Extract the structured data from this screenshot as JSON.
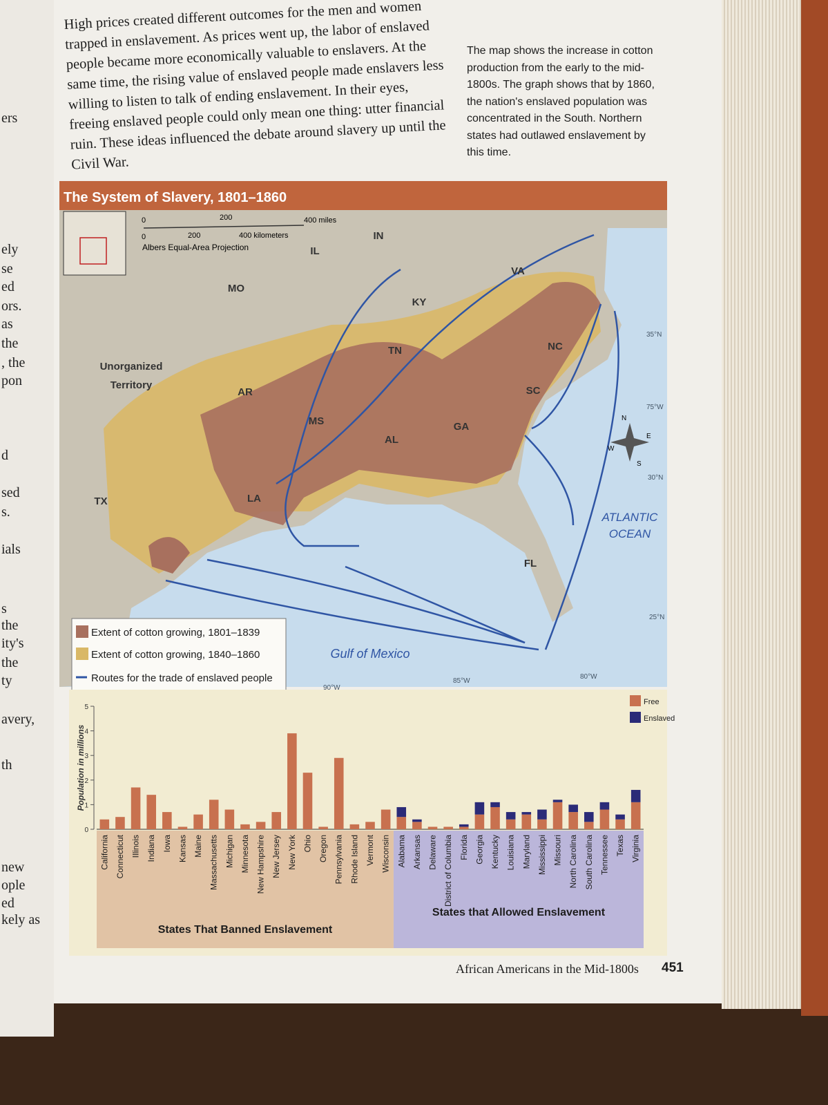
{
  "left_page_fragments": [
    "ers",
    "ely",
    "se",
    "ed",
    "ors.",
    "as",
    "the",
    ", the",
    "pon",
    "d",
    "sed",
    "s.",
    "ials",
    "s",
    "the",
    "ity's",
    "the",
    "ty",
    "avery,",
    "th",
    "new",
    "ople",
    "ed",
    "kely as"
  ],
  "body_text": "High prices created different outcomes for the men and women trapped in enslavement. As prices went up, the labor of enslaved people became more economically valuable to enslavers. At the same time, the rising value of enslaved people made enslavers less willing to listen to talk of ending enslavement. In their eyes, freeing enslaved people could only mean one thing: utter financial ruin. These ideas influenced the debate around slavery up until the Civil War.",
  "caption": "The map shows the increase in cotton production from the early to the mid-1800s. The graph shows that by 1860, the nation's enslaved population was concentrated in the South. Northern states had outlawed enslavement by this time.",
  "figure_title": "The System of Slavery, 1801–1860",
  "map": {
    "scale_miles": [
      "0",
      "200",
      "400 miles"
    ],
    "scale_km": [
      "0",
      "200",
      "400 kilometers"
    ],
    "projection": "Albers Equal-Area Projection",
    "states": [
      "IN",
      "IL",
      "MO",
      "KY",
      "VA",
      "TN",
      "NC",
      "AR",
      "SC",
      "MS",
      "AL",
      "GA",
      "LA",
      "TX",
      "FL"
    ],
    "territory": [
      "Unorganized",
      "Territory"
    ],
    "ocean": [
      "ATLANTIC",
      "OCEAN"
    ],
    "gulf": "Gulf of Mexico",
    "graticule": [
      "35°N",
      "30°N",
      "25°N",
      "75°W",
      "80°W",
      "85°W",
      "90°W"
    ],
    "compass": [
      "N",
      "E",
      "S",
      "W"
    ],
    "legend": [
      {
        "label": "Extent of cotton growing, 1801–1839",
        "color": "#a8705e"
      },
      {
        "label": "Extent of cotton growing, 1840–1860",
        "color": "#d9b867"
      },
      {
        "label": "Routes for the trade of enslaved people",
        "color": "#2f55a4"
      }
    ]
  },
  "chart_data": {
    "type": "stacked-bar",
    "y_label": "Population in millions",
    "ylim": [
      0,
      5
    ],
    "yticks": [
      0,
      1,
      2,
      3,
      4,
      5
    ],
    "categories": [
      "California",
      "Connecticut",
      "Illinois",
      "Indiana",
      "Iowa",
      "Kansas",
      "Maine",
      "Massachusetts",
      "Michigan",
      "Minnesota",
      "New Hampshire",
      "New Jersey",
      "New York",
      "Ohio",
      "Oregon",
      "Pennsylvania",
      "Rhode Island",
      "Vermont",
      "Wisconsin",
      "Alabama",
      "Arkansas",
      "Delaware",
      "District of Columbia",
      "Florida",
      "Georgia",
      "Kentucky",
      "Louisiana",
      "Maryland",
      "Mississippi",
      "Missouri",
      "North Carolina",
      "South Carolina",
      "Tennessee",
      "Texas",
      "Virginia"
    ],
    "series": [
      {
        "name": "Free",
        "color": "#c8714f",
        "values": [
          0.4,
          0.5,
          1.7,
          1.4,
          0.7,
          0.1,
          0.6,
          1.2,
          0.8,
          0.2,
          0.3,
          0.7,
          3.9,
          2.3,
          0.1,
          2.9,
          0.2,
          0.3,
          0.8,
          0.5,
          0.3,
          0.1,
          0.1,
          0.1,
          0.6,
          0.9,
          0.4,
          0.6,
          0.4,
          1.1,
          0.7,
          0.3,
          0.8,
          0.4,
          1.1
        ]
      },
      {
        "name": "Enslaved",
        "color": "#2b2b78",
        "values": [
          0,
          0,
          0,
          0,
          0,
          0,
          0,
          0,
          0,
          0,
          0,
          0,
          0,
          0,
          0,
          0,
          0,
          0,
          0,
          0.4,
          0.1,
          0,
          0,
          0.1,
          0.5,
          0.2,
          0.3,
          0.1,
          0.4,
          0.1,
          0.3,
          0.4,
          0.3,
          0.2,
          0.5
        ]
      }
    ],
    "groups": [
      {
        "label": "States That Banned Enslavement",
        "count": 19,
        "color": "#e1c3a5"
      },
      {
        "label": "States that Allowed Enslavement",
        "count": 16,
        "color": "#bbb6da"
      }
    ]
  },
  "footer": {
    "running_head": "African Americans in the Mid-1800s",
    "page_number": "451"
  }
}
